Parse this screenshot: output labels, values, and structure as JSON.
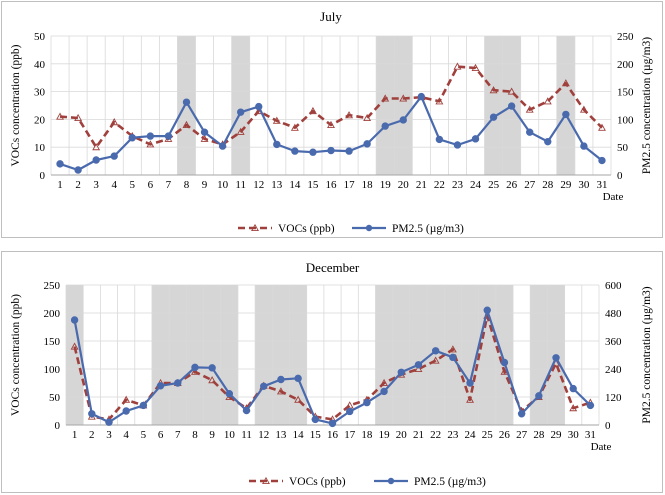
{
  "chart_data": [
    {
      "type": "line",
      "title": "July",
      "xlabel": "Date",
      "ylabel_left": "VOCs concentration (ppb)",
      "ylabel_right": "PM2.5 concentration (µg/m3)",
      "x": [
        1,
        2,
        3,
        4,
        5,
        6,
        7,
        8,
        9,
        10,
        11,
        12,
        13,
        14,
        15,
        16,
        17,
        18,
        19,
        20,
        21,
        22,
        23,
        24,
        25,
        26,
        27,
        28,
        29,
        30,
        31
      ],
      "x_tick_labels": [
        "1",
        "2",
        "3",
        "4",
        "5",
        "6",
        "7",
        "8",
        "9",
        "10",
        "11",
        "12",
        "13",
        "14",
        "15",
        "16",
        "17",
        "18",
        "19",
        "20",
        "21",
        "22",
        "23",
        "24",
        "25",
        "26",
        "27",
        "28",
        "29",
        "30",
        "31"
      ],
      "ylim_left": [
        0,
        50
      ],
      "ylim_right": [
        0,
        250
      ],
      "yticks_left": [
        "0",
        "10",
        "20",
        "30",
        "40",
        "50"
      ],
      "yticks_right": [
        "0",
        "50",
        "100",
        "150",
        "200",
        "250"
      ],
      "shaded_ranges": [
        [
          7.5,
          8.5
        ],
        [
          10.5,
          11.5
        ],
        [
          18.5,
          20.5
        ],
        [
          24.5,
          26.5
        ],
        [
          28.5,
          29.5
        ]
      ],
      "series": [
        {
          "name": "VOCs (ppb)",
          "axis": "left",
          "color": "#a0403c",
          "style": "dashed",
          "marker": "triangle",
          "values": [
            21,
            20.5,
            10,
            19,
            14,
            11,
            13,
            18,
            13,
            11,
            15.5,
            23,
            19.5,
            17,
            23,
            18,
            21.5,
            20.5,
            27.5,
            27.5,
            28,
            26.5,
            39,
            38.5,
            30.5,
            30,
            23.5,
            26.5,
            33,
            23.5,
            17
          ]
        },
        {
          "name": "PM2.5 (µg/m3)",
          "axis": "right",
          "color": "#4a6aae",
          "style": "solid",
          "marker": "circle",
          "values": [
            20,
            9,
            27,
            34,
            67,
            70,
            70,
            131,
            77,
            52,
            113,
            123,
            55,
            43,
            41,
            44,
            43,
            56,
            88,
            99,
            141,
            64,
            54,
            65,
            104,
            124,
            77,
            60,
            109,
            52,
            26
          ]
        }
      ],
      "legend": "bottom"
    },
    {
      "type": "line",
      "title": "December",
      "xlabel": "Date",
      "ylabel_left": "VOCs concentration (ppb)",
      "ylabel_right": "PM2.5 concentration (µg/m3)",
      "x": [
        1,
        2,
        3,
        4,
        5,
        6,
        7,
        8,
        9,
        10,
        11,
        12,
        13,
        14,
        15,
        16,
        17,
        18,
        19,
        20,
        21,
        22,
        23,
        24,
        25,
        26,
        27,
        28,
        29,
        30,
        31
      ],
      "x_tick_labels": [
        "1",
        "2",
        "3",
        "4",
        "5",
        "6",
        "7",
        "8",
        "9",
        "10",
        "11",
        "12",
        "13",
        "14",
        "15",
        "16",
        "17",
        "18",
        "19",
        "20",
        "21",
        "22",
        "23",
        "24",
        "25",
        "26",
        "27",
        "28",
        "29",
        "30",
        "31"
      ],
      "ylim_left": [
        0,
        250
      ],
      "ylim_right": [
        0,
        600
      ],
      "yticks_left": [
        "0",
        "50",
        "100",
        "150",
        "200",
        "250"
      ],
      "yticks_right": [
        "0",
        "120",
        "240",
        "360",
        "480",
        "600"
      ],
      "shaded_ranges": [
        [
          0.5,
          1.5
        ],
        [
          5.5,
          10.5
        ],
        [
          11.5,
          14.5
        ],
        [
          18.5,
          26.5
        ],
        [
          27.5,
          29.5
        ]
      ],
      "series": [
        {
          "name": "VOCs (ppb)",
          "axis": "left",
          "color": "#a0403c",
          "style": "dashed",
          "marker": "triangle",
          "values": [
            140,
            15,
            10,
            45,
            35,
            75,
            75,
            95,
            80,
            50,
            30,
            70,
            60,
            45,
            15,
            10,
            35,
            45,
            75,
            90,
            100,
            115,
            135,
            45,
            195,
            95,
            25,
            50,
            110,
            30,
            40
          ]
        },
        {
          "name": "PM2.5 (µg/m3)",
          "axis": "right",
          "color": "#4a6aae",
          "style": "solid",
          "marker": "circle",
          "values": [
            450,
            48,
            12,
            60,
            84,
            168,
            180,
            247,
            245,
            134,
            62,
            166,
            195,
            200,
            24,
            7,
            58,
            96,
            144,
            226,
            258,
            318,
            290,
            180,
            492,
            268,
            48,
            125,
            288,
            156,
            84
          ]
        }
      ],
      "legend": "bottom"
    }
  ]
}
